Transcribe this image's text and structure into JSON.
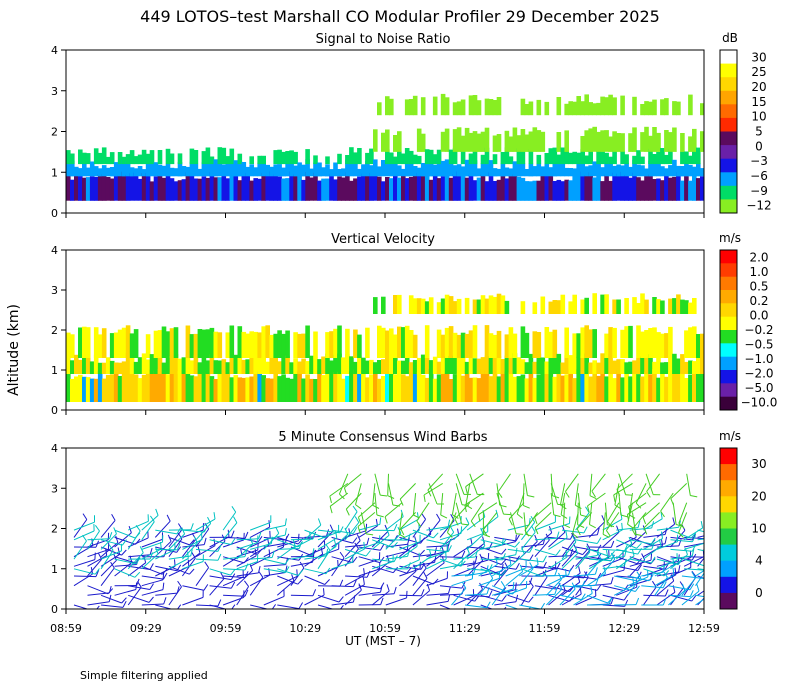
{
  "title": "449 LOTOS–test Marshall CO Modular Profiler 29 December 2025",
  "ylabel": "Altitude (km)",
  "xlabel": "UT  (MST – 7)",
  "footer": "Simple filtering applied",
  "chart_data": [
    {
      "type": "heatmap",
      "title": "Signal to Noise Ratio",
      "units": "dB",
      "x_range_hours": [
        8.9833,
        12.9833
      ],
      "y_range_km": [
        0,
        4
      ],
      "x_ticks": [
        "08:59",
        "09:29",
        "09:59",
        "10:29",
        "10:59",
        "11:29",
        "11:59",
        "12:29",
        "12:59"
      ],
      "y_ticks": [
        "0",
        "1",
        "2",
        "3",
        "4"
      ],
      "colorbar": {
        "labels": [
          "30",
          "25",
          "20",
          "15",
          "10",
          "5",
          "0",
          "−3",
          "−6",
          "−9",
          "−12"
        ],
        "colors": [
          "#ffffff",
          "#ffff00",
          "#ffd700",
          "#ffa500",
          "#ff6a00",
          "#ff2a00",
          "#5b0a5e",
          "#6a20a8",
          "#1414e6",
          "#00a0ff",
          "#00dd66",
          "#88ee22"
        ]
      },
      "layers": [
        {
          "altitude_km": [
            0.3,
            0.9
          ],
          "value_dB": 3,
          "note": "dark purple / blue base layer"
        },
        {
          "altitude_km": [
            0.9,
            1.2
          ],
          "value_dB": -6,
          "note": "cyan layer"
        },
        {
          "altitude_km": [
            1.2,
            1.5
          ],
          "value_dB": -9,
          "note": "green layer"
        },
        {
          "altitude_km": [
            1.5,
            2.0
          ],
          "value_dB": -12,
          "note": "light green patches"
        },
        {
          "altitude_km": [
            2.4,
            2.8
          ],
          "value_dB": -12,
          "note": "elevated patches after 10:59"
        }
      ]
    },
    {
      "type": "heatmap",
      "title": "Vertical Velocity",
      "units": "m/s",
      "x_range_hours": [
        8.9833,
        12.9833
      ],
      "y_range_km": [
        0,
        4
      ],
      "x_ticks": [
        "08:59",
        "09:29",
        "09:59",
        "10:29",
        "10:59",
        "11:29",
        "11:59",
        "12:29",
        "12:59"
      ],
      "y_ticks": [
        "0",
        "1",
        "2",
        "3",
        "4"
      ],
      "colorbar": {
        "labels": [
          "2.0",
          "1.0",
          "0.5",
          "0.2",
          "0.0",
          "−0.2",
          "−0.5",
          "−1.0",
          "−2.0",
          "−5.0",
          "−10.0"
        ],
        "colors": [
          "#ff0000",
          "#ff3c00",
          "#ff7a00",
          "#ffaa00",
          "#ffd700",
          "#ffff00",
          "#22dd22",
          "#00ffff",
          "#00a0ff",
          "#1414e6",
          "#6a20a8",
          "#3a003a"
        ]
      },
      "layers": [
        {
          "altitude_km": [
            0.2,
            0.9
          ],
          "value_ms": 0.1,
          "note": "orange / yellow mix"
        },
        {
          "altitude_km": [
            0.9,
            1.3
          ],
          "value_ms": -0.2,
          "note": "green / yellow mix"
        },
        {
          "altitude_km": [
            1.3,
            2.0
          ],
          "value_ms": 0.0,
          "note": "scattered yellow / green"
        },
        {
          "altitude_km": [
            2.4,
            2.8
          ],
          "value_ms": 0.0,
          "note": "elevated yellow patches"
        }
      ]
    },
    {
      "type": "scatter",
      "title": "5 Minute Consensus Wind Barbs",
      "units": "m/s",
      "x_range_hours": [
        8.9833,
        12.9833
      ],
      "y_range_km": [
        0,
        4
      ],
      "x_ticks": [
        "08:59",
        "09:29",
        "09:59",
        "10:29",
        "10:59",
        "11:29",
        "11:59",
        "12:29",
        "12:59"
      ],
      "y_ticks": [
        "0",
        "1",
        "2",
        "3",
        "4"
      ],
      "colorbar": {
        "labels": [
          "30",
          "20",
          "10",
          "4",
          "0"
        ],
        "colors": [
          "#ff0000",
          "#ff6a00",
          "#ffaa00",
          "#ffd700",
          "#88ee22",
          "#22cc44",
          "#00ccdd",
          "#00a0ff",
          "#1414e6",
          "#5b0a5e"
        ]
      },
      "barb_groups": [
        {
          "altitude_km": [
            0.1,
            1.9
          ],
          "speed_ms": 3,
          "color": "#1a1acc",
          "note": "blue barbs, low levels"
        },
        {
          "altitude_km": [
            0.1,
            1.0
          ],
          "speed_ms": 6,
          "color": "#00a8e8",
          "note": "cyan barbs, low levels after 11:29"
        },
        {
          "altitude_km": [
            1.0,
            2.0
          ],
          "speed_ms": 7,
          "color": "#00c2c2",
          "note": "teal barbs near 1-2 km"
        },
        {
          "altitude_km": [
            2.4,
            3.5
          ],
          "speed_ms": 10,
          "color": "#44cc22",
          "note": "green barbs, upper levels"
        }
      ]
    }
  ]
}
